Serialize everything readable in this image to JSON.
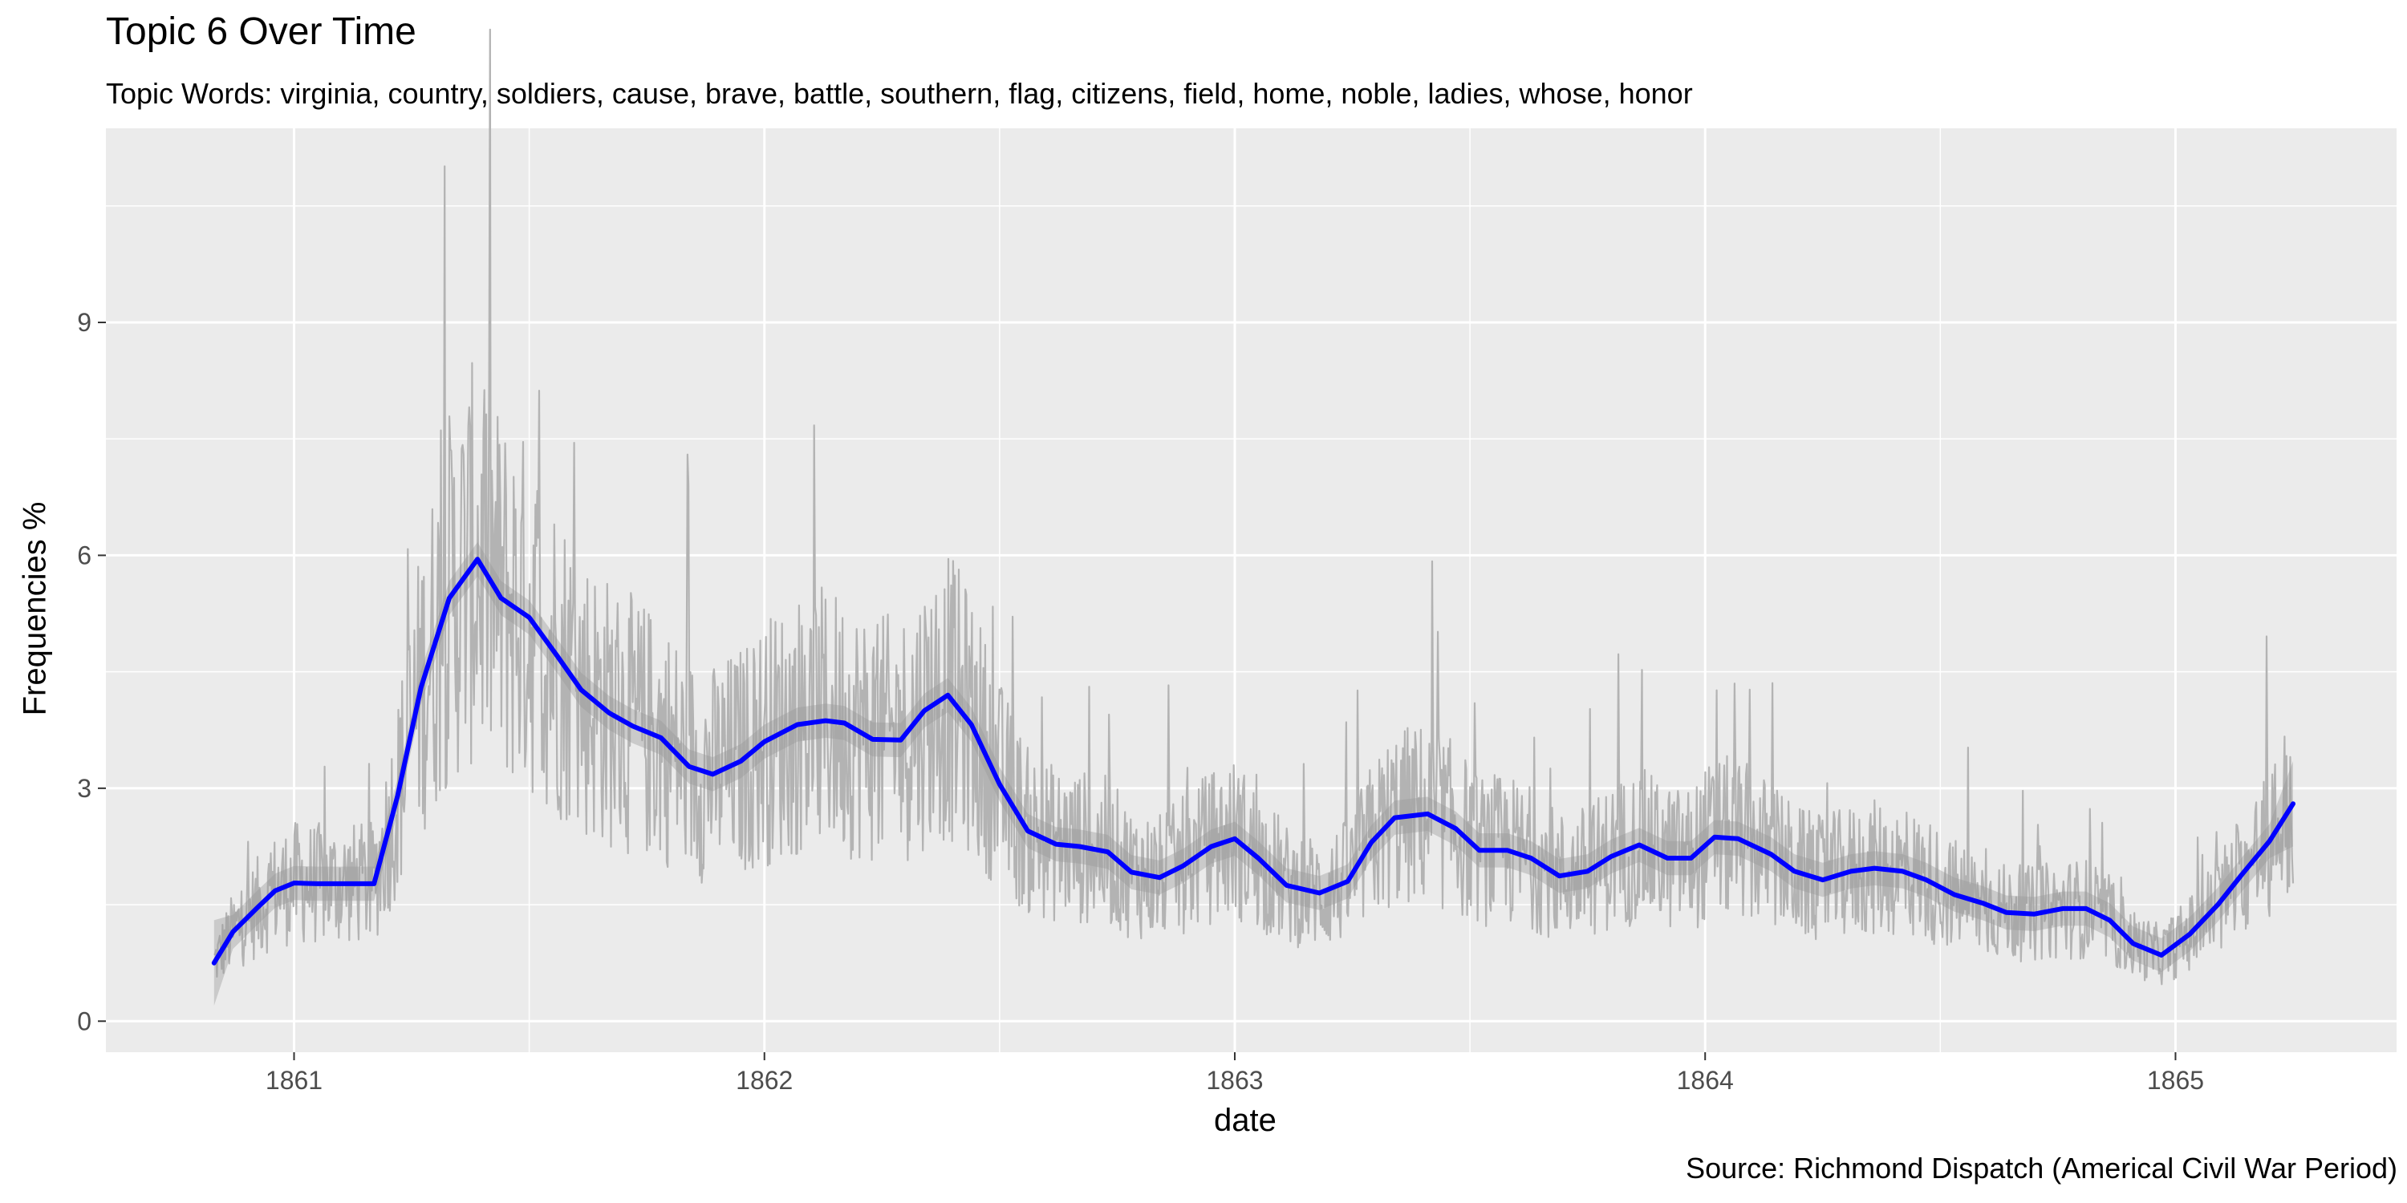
{
  "chart_data": {
    "type": "line",
    "title": "Topic 6 Over Time",
    "subtitle": "Topic Words: virginia, country, soldiers, cause, brave, battle, southern, flag, citizens, field, home, noble, ladies, whose, honor",
    "caption": "Source: Richmond Dispatch (Americal Civil War Period)",
    "xlabel": "date",
    "ylabel": "Frequencies %",
    "x_ticks": [
      "1861",
      "1862",
      "1863",
      "1864",
      "1865"
    ],
    "y_ticks": [
      "0",
      "3",
      "6",
      "9"
    ],
    "xlim": [
      1860.6,
      1865.47
    ],
    "ylim": [
      -0.4,
      11.5
    ],
    "grid": true,
    "colors": {
      "panel_background": "#ebebeb",
      "grid": "#ffffff",
      "raw_series": "#b3b3b3",
      "smooth_line": "#0000ff",
      "confidence_band": "#999999"
    },
    "series": [
      {
        "smooth": true,
        "x": [
          1860.83,
          1860.87,
          1860.92,
          1860.96,
          1861.0,
          1861.05,
          1861.17,
          1861.22,
          1861.27,
          1861.33,
          1861.39,
          1861.44,
          1861.5,
          1861.56,
          1861.61,
          1861.67,
          1861.72,
          1861.78,
          1861.84,
          1861.89,
          1861.95,
          1862.0,
          1862.07,
          1862.13,
          1862.17,
          1862.23,
          1862.29,
          1862.34,
          1862.39,
          1862.44,
          1862.5,
          1862.56,
          1862.62,
          1862.67,
          1862.73,
          1862.78,
          1862.84,
          1862.89,
          1862.95,
          1863.0,
          1863.05,
          1863.11,
          1863.18,
          1863.24,
          1863.29,
          1863.34,
          1863.41,
          1863.47,
          1863.52,
          1863.58,
          1863.63,
          1863.69,
          1863.75,
          1863.8,
          1863.86,
          1863.92,
          1863.97,
          1864.02,
          1864.07,
          1864.14,
          1864.19,
          1864.25,
          1864.31,
          1864.36,
          1864.42,
          1864.47,
          1864.53,
          1864.59,
          1864.64,
          1864.7,
          1864.76,
          1864.81,
          1864.86,
          1864.91,
          1864.97,
          1865.03,
          1865.09,
          1865.14,
          1865.2,
          1865.25
        ],
        "y": [
          0.75,
          1.15,
          1.45,
          1.68,
          1.78,
          1.77,
          1.77,
          2.9,
          4.3,
          5.45,
          5.95,
          5.45,
          5.2,
          4.7,
          4.27,
          3.97,
          3.8,
          3.65,
          3.28,
          3.18,
          3.35,
          3.6,
          3.82,
          3.87,
          3.84,
          3.63,
          3.62,
          4.0,
          4.2,
          3.82,
          3.05,
          2.45,
          2.28,
          2.25,
          2.18,
          1.92,
          1.85,
          2.0,
          2.25,
          2.35,
          2.1,
          1.75,
          1.65,
          1.8,
          2.3,
          2.62,
          2.67,
          2.48,
          2.2,
          2.2,
          2.1,
          1.87,
          1.93,
          2.12,
          2.27,
          2.1,
          2.1,
          2.37,
          2.35,
          2.15,
          1.93,
          1.82,
          1.93,
          1.97,
          1.93,
          1.82,
          1.63,
          1.52,
          1.4,
          1.38,
          1.45,
          1.45,
          1.3,
          1.0,
          0.85,
          1.12,
          1.5,
          1.88,
          2.32,
          2.8
        ]
      }
    ]
  }
}
